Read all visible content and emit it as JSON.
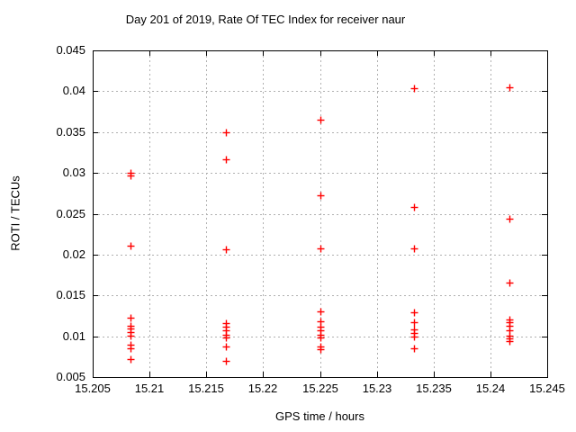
{
  "window": {
    "background": "#ffffff"
  },
  "chart_data": {
    "type": "scatter",
    "title": "Day 201 of 2019, Rate Of TEC Index for receiver naur",
    "xlabel": "GPS time / hours",
    "ylabel": "ROTI / TECUs",
    "xlim": [
      15.205,
      15.245
    ],
    "ylim": [
      0.005,
      0.045
    ],
    "x_ticks": [
      15.205,
      15.21,
      15.215,
      15.22,
      15.225,
      15.23,
      15.235,
      15.24,
      15.245
    ],
    "x_tick_labels": [
      "15.205",
      "15.21",
      "15.215",
      "15.22",
      "15.225",
      "15.23",
      "15.235",
      "15.24",
      "15.245"
    ],
    "y_ticks": [
      0.005,
      0.01,
      0.015,
      0.02,
      0.025,
      0.03,
      0.035,
      0.04,
      0.045
    ],
    "y_tick_labels": [
      "0.005",
      "0.01",
      "0.015",
      "0.02",
      "0.025",
      "0.03",
      "0.035",
      "0.04",
      "0.045"
    ],
    "grid": true,
    "legend": "none",
    "marker": "plus",
    "marker_color": "#ff0000",
    "grid_color": "#b0b0b0",
    "axis_color": "#000000",
    "series": [
      {
        "name": "ROTI",
        "points": [
          [
            15.2083,
            0.03
          ],
          [
            15.2083,
            0.0297
          ],
          [
            15.2083,
            0.0211
          ],
          [
            15.2083,
            0.0123
          ],
          [
            15.2083,
            0.0113
          ],
          [
            15.2083,
            0.0109
          ],
          [
            15.2083,
            0.0105
          ],
          [
            15.2083,
            0.0101
          ],
          [
            15.2083,
            0.009
          ],
          [
            15.2083,
            0.0085
          ],
          [
            15.2083,
            0.0072
          ],
          [
            15.2167,
            0.035
          ],
          [
            15.2167,
            0.0317
          ],
          [
            15.2167,
            0.0206
          ],
          [
            15.2167,
            0.0116
          ],
          [
            15.2167,
            0.0112
          ],
          [
            15.2167,
            0.0107
          ],
          [
            15.2167,
            0.0102
          ],
          [
            15.2167,
            0.0099
          ],
          [
            15.2167,
            0.0087
          ],
          [
            15.2167,
            0.007
          ],
          [
            15.225,
            0.0365
          ],
          [
            15.225,
            0.0273
          ],
          [
            15.225,
            0.0208
          ],
          [
            15.225,
            0.013
          ],
          [
            15.225,
            0.0118
          ],
          [
            15.225,
            0.0112
          ],
          [
            15.225,
            0.0107
          ],
          [
            15.225,
            0.0102
          ],
          [
            15.225,
            0.0098
          ],
          [
            15.225,
            0.0087
          ],
          [
            15.225,
            0.0084
          ],
          [
            15.2333,
            0.0404
          ],
          [
            15.2333,
            0.0258
          ],
          [
            15.2333,
            0.0208
          ],
          [
            15.2333,
            0.0129
          ],
          [
            15.2333,
            0.0117
          ],
          [
            15.2333,
            0.0108
          ],
          [
            15.2333,
            0.0104
          ],
          [
            15.2333,
            0.01
          ],
          [
            15.2333,
            0.0085
          ],
          [
            15.2417,
            0.0405
          ],
          [
            15.2417,
            0.0244
          ],
          [
            15.2417,
            0.0166
          ],
          [
            15.2417,
            0.0121
          ],
          [
            15.2417,
            0.0117
          ],
          [
            15.2417,
            0.0113
          ],
          [
            15.2417,
            0.0107
          ],
          [
            15.2417,
            0.0101
          ],
          [
            15.2417,
            0.0097
          ],
          [
            15.2417,
            0.0094
          ]
        ]
      }
    ]
  }
}
